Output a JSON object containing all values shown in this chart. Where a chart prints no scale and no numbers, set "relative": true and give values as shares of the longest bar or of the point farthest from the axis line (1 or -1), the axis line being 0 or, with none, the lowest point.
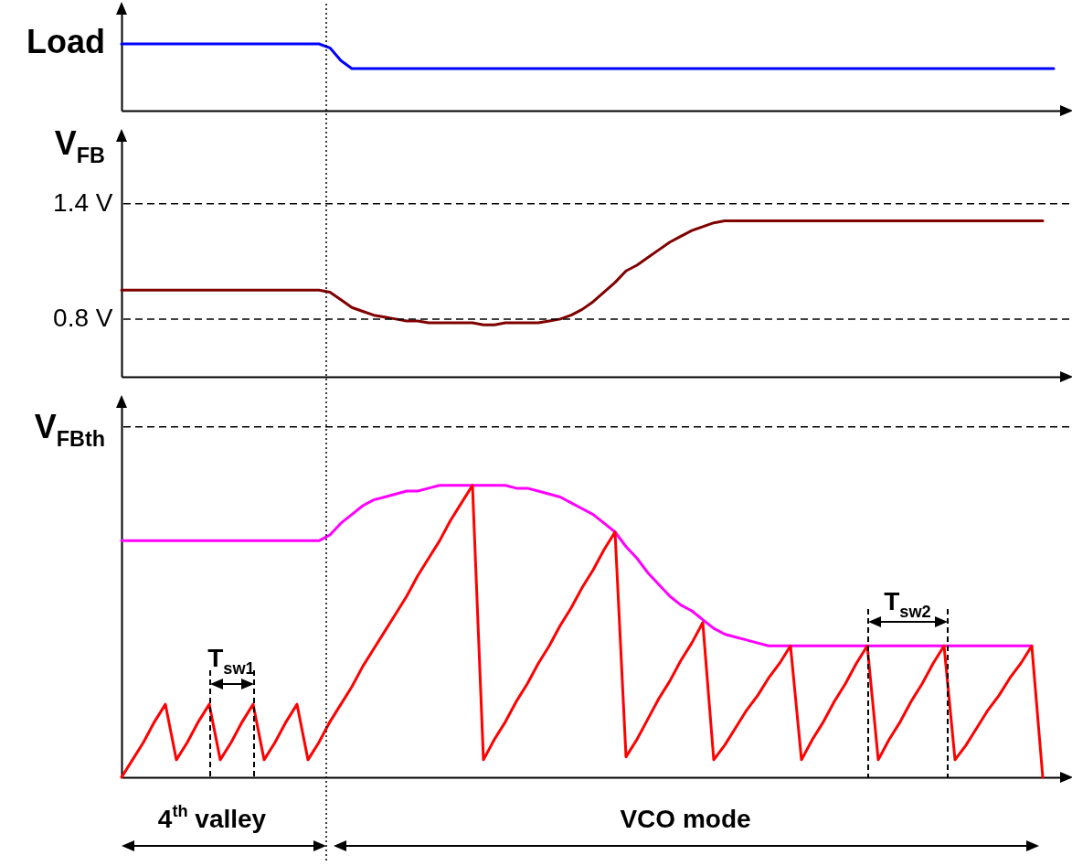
{
  "chart_data": [
    {
      "type": "line",
      "ylabel": "Load",
      "relative": true,
      "tick_labels": false,
      "categories": [
        null,
        null,
        null,
        null,
        null,
        null,
        null,
        null,
        null,
        null,
        null,
        null,
        null,
        null,
        null,
        null,
        null,
        null,
        null,
        null,
        null,
        null,
        null,
        null,
        null,
        null,
        null,
        null,
        null,
        null,
        null,
        null,
        null,
        null,
        null,
        null,
        null,
        null,
        null,
        null,
        null,
        null,
        null,
        null,
        null,
        null,
        null,
        null,
        null,
        null,
        null,
        null,
        null,
        null,
        null,
        null,
        null,
        null,
        null,
        null,
        null,
        null,
        null,
        null,
        null,
        null,
        null,
        null,
        null,
        null,
        null,
        null,
        null,
        null,
        null,
        null,
        null,
        null,
        null,
        null,
        null,
        null,
        null,
        null,
        null,
        null
      ],
      "series": [
        {
          "color": "#0000ff",
          "values": [
            1,
            1,
            1,
            1,
            1,
            1,
            1,
            1,
            1,
            1,
            1,
            1,
            1,
            1,
            1,
            1,
            1,
            1,
            1,
            0.94,
            0.75,
            0.63,
            0.63,
            0.63,
            0.63,
            0.63,
            0.63,
            0.63,
            0.63,
            0.63,
            0.63,
            0.63,
            0.63,
            0.63,
            0.63,
            0.63,
            0.63,
            0.63,
            0.63,
            0.63,
            0.63,
            0.63,
            0.63,
            0.63,
            0.63,
            0.63,
            0.63,
            0.63,
            0.63,
            0.63,
            0.63,
            0.63,
            0.63,
            0.63,
            0.63,
            0.63,
            0.63,
            0.63,
            0.63,
            0.63,
            0.63,
            0.63,
            0.63,
            0.63,
            0.63,
            0.63,
            0.63,
            0.63,
            0.63,
            0.63,
            0.63,
            0.63,
            0.63,
            0.63,
            0.63,
            0.63,
            0.63,
            0.63,
            0.63,
            0.63,
            0.63,
            0.63,
            0.63,
            0.63,
            0.63,
            0.63
          ]
        }
      ]
    },
    {
      "type": "line",
      "ylabel": "V$_{FB}$",
      "tick_labels": "y",
      "ylim": [
        0.5,
        1.75
      ],
      "yticks": [
        {
          "value": 0.8,
          "label": "0.8 V"
        },
        {
          "value": 1.4,
          "label": "1.4 V"
        }
      ],
      "ref_lines": [
        {
          "axis": "y",
          "value": 0.8,
          "line_style": "dashed"
        },
        {
          "axis": "y",
          "value": 1.4,
          "line_style": "dashed"
        }
      ],
      "categories": [
        null,
        null,
        null,
        null,
        null,
        null,
        null,
        null,
        null,
        null,
        null,
        null,
        null,
        null,
        null,
        null,
        null,
        null,
        null,
        null,
        null,
        null,
        null,
        null,
        null,
        null,
        null,
        null,
        null,
        null,
        null,
        null,
        null,
        null,
        null,
        null,
        null,
        null,
        null,
        null,
        null,
        null,
        null,
        null,
        null,
        null,
        null,
        null,
        null,
        null,
        null,
        null,
        null,
        null,
        null,
        null,
        null,
        null,
        null,
        null,
        null,
        null,
        null,
        null,
        null,
        null,
        null,
        null,
        null,
        null,
        null,
        null,
        null,
        null,
        null,
        null,
        null,
        null,
        null,
        null,
        null,
        null,
        null,
        null,
        null,
        null
      ],
      "series": [
        {
          "color": "#800000",
          "values": [
            0.95,
            0.95,
            0.95,
            0.95,
            0.95,
            0.95,
            0.95,
            0.95,
            0.95,
            0.95,
            0.95,
            0.95,
            0.95,
            0.95,
            0.95,
            0.95,
            0.95,
            0.95,
            0.95,
            0.94,
            0.9,
            0.86,
            0.84,
            0.82,
            0.81,
            0.8,
            0.79,
            0.79,
            0.78,
            0.78,
            0.78,
            0.78,
            0.78,
            0.77,
            0.77,
            0.78,
            0.78,
            0.78,
            0.78,
            0.79,
            0.8,
            0.82,
            0.85,
            0.89,
            0.94,
            0.99,
            1.05,
            1.08,
            1.12,
            1.16,
            1.2,
            1.23,
            1.26,
            1.28,
            1.3,
            1.31,
            1.31,
            1.31,
            1.31,
            1.31,
            1.31,
            1.31,
            1.31,
            1.31,
            1.31,
            1.31,
            1.31,
            1.31,
            1.31,
            1.31,
            1.31,
            1.31,
            1.31,
            1.31,
            1.31,
            1.31,
            1.31,
            1.31,
            1.31,
            1.31,
            1.31,
            1.31,
            1.31,
            1.31,
            1.31,
            null
          ]
        }
      ]
    },
    {
      "type": "line",
      "ylabel": "V$_{FBth}$",
      "relative": true,
      "tick_labels": false,
      "ref_lines": [
        {
          "axis": "y",
          "value": 1.2,
          "line_style": "dashed"
        }
      ],
      "annotations": [
        "T$_{sw1}$",
        "T$_{sw2}$",
        "4$^{th}$ valley",
        "VCO mode"
      ],
      "categories": [
        null,
        null,
        null,
        null,
        null,
        null,
        null,
        null,
        null,
        null,
        null,
        null,
        null,
        null,
        null,
        null,
        null,
        null,
        null,
        null,
        null,
        null,
        null,
        null,
        null,
        null,
        null,
        null,
        null,
        null,
        null,
        null,
        null,
        null,
        null,
        null,
        null,
        null,
        null,
        null,
        null,
        null,
        null,
        null,
        null,
        null,
        null,
        null,
        null,
        null,
        null,
        null,
        null,
        null,
        null,
        null,
        null,
        null,
        null,
        null,
        null,
        null,
        null,
        null,
        null,
        null,
        null,
        null,
        null,
        null,
        null,
        null,
        null,
        null,
        null,
        null,
        null,
        null,
        null,
        null,
        null,
        null,
        null,
        null,
        null,
        null
      ],
      "series": [
        {
          "color": "#ff00ff",
          "values": [
            0.81,
            0.81,
            0.81,
            0.81,
            0.81,
            0.81,
            0.81,
            0.81,
            0.81,
            0.81,
            0.81,
            0.81,
            0.81,
            0.81,
            0.81,
            0.81,
            0.81,
            0.81,
            0.81,
            0.83,
            0.87,
            0.9,
            0.93,
            0.95,
            0.96,
            0.97,
            0.98,
            0.98,
            0.99,
            1.0,
            1.0,
            1.0,
            1.0,
            1.0,
            1.0,
            1.0,
            0.99,
            0.99,
            0.98,
            0.97,
            0.96,
            0.94,
            0.92,
            0.9,
            0.87,
            0.84,
            0.79,
            0.75,
            0.7,
            0.66,
            0.62,
            0.59,
            0.57,
            0.54,
            0.51,
            0.49,
            0.48,
            0.47,
            0.46,
            0.45,
            0.45,
            0.45,
            0.45,
            0.45,
            0.45,
            0.45,
            0.45,
            0.45,
            0.45,
            0.45,
            0.45,
            0.45,
            0.45,
            0.45,
            0.45,
            0.45,
            0.45,
            0.45,
            0.45,
            0.45,
            0.45,
            0.45,
            0.45,
            0.45,
            null,
            null
          ]
        },
        {
          "color": "#ff0000",
          "values": [
            0,
            0.06,
            0.12,
            0.19,
            0.25,
            0.06,
            0.12,
            0.19,
            0.25,
            0.06,
            0.12,
            0.19,
            0.25,
            0.06,
            0.12,
            0.19,
            0.25,
            0.06,
            0.12,
            0.19,
            0.25,
            0.31,
            0.38,
            0.44,
            0.5,
            0.56,
            0.62,
            0.69,
            0.75,
            0.81,
            0.88,
            0.94,
            1.0,
            0.06,
            0.13,
            0.19,
            0.26,
            0.32,
            0.39,
            0.45,
            0.52,
            0.58,
            0.65,
            0.71,
            0.78,
            0.84,
            0.07,
            0.13,
            0.2,
            0.27,
            0.33,
            0.4,
            0.46,
            0.53,
            0.06,
            0.11,
            0.17,
            0.23,
            0.28,
            0.34,
            0.39,
            0.45,
            0.06,
            0.13,
            0.19,
            0.26,
            0.32,
            0.39,
            0.45,
            0.06,
            0.13,
            0.19,
            0.26,
            0.32,
            0.39,
            0.45,
            0.06,
            0.11,
            0.17,
            0.23,
            0.28,
            0.34,
            0.39,
            0.45,
            0,
            null
          ]
        }
      ]
    }
  ]
}
